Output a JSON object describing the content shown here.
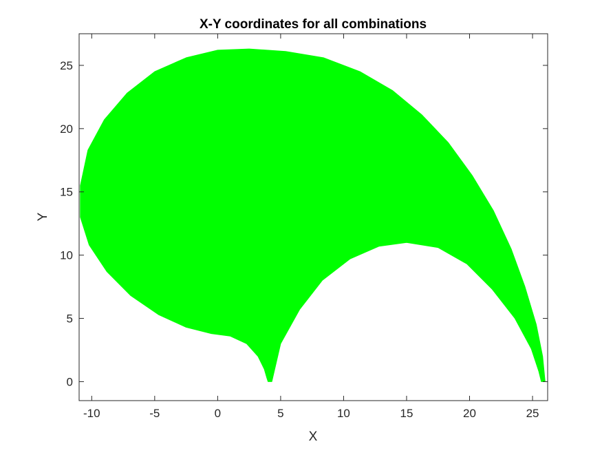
{
  "chart_data": {
    "type": "area",
    "title": "X-Y coordinates for all combinations",
    "xlabel": "X",
    "ylabel": "Y",
    "xlim": [
      -11,
      26.2
    ],
    "ylim": [
      -1.5,
      27.5
    ],
    "x_ticks": [
      -10,
      -5,
      0,
      5,
      10,
      15,
      20,
      25
    ],
    "y_ticks": [
      0,
      5,
      10,
      15,
      20,
      25
    ],
    "x_tick_labels": [
      "-10",
      "-5",
      "0",
      "5",
      "10",
      "15",
      "20",
      "25"
    ],
    "y_tick_labels": [
      "0",
      "5",
      "10",
      "15",
      "20",
      "25"
    ],
    "grid": false,
    "legend": "none",
    "fill_color": "#00ff00",
    "series": [
      {
        "region_outline": [
          [
            26.0,
            0.0
          ],
          [
            25.8,
            2.0
          ],
          [
            25.3,
            4.5
          ],
          [
            24.4,
            7.5
          ],
          [
            23.3,
            10.5
          ],
          [
            21.9,
            13.5
          ],
          [
            20.2,
            16.3
          ],
          [
            18.3,
            18.9
          ],
          [
            16.2,
            21.1
          ],
          [
            13.9,
            23.0
          ],
          [
            11.3,
            24.5
          ],
          [
            8.4,
            25.6
          ],
          [
            5.4,
            26.1
          ],
          [
            2.5,
            26.3
          ],
          [
            0.0,
            26.2
          ],
          [
            -2.5,
            25.6
          ],
          [
            -5.0,
            24.5
          ],
          [
            -7.2,
            22.8
          ],
          [
            -9.0,
            20.7
          ],
          [
            -10.3,
            18.3
          ],
          [
            -10.9,
            15.5
          ],
          [
            -10.9,
            13.0
          ],
          [
            -10.2,
            10.8
          ],
          [
            -8.8,
            8.7
          ],
          [
            -6.9,
            6.8
          ],
          [
            -4.7,
            5.3
          ],
          [
            -2.5,
            4.3
          ],
          [
            -0.5,
            3.8
          ],
          [
            1.0,
            3.6
          ],
          [
            2.3,
            3.0
          ],
          [
            3.2,
            2.0
          ],
          [
            3.7,
            1.0
          ],
          [
            3.9,
            0.3
          ],
          [
            4.0,
            0.0
          ],
          [
            4.3,
            0.0
          ],
          [
            5.0,
            3.0
          ],
          [
            6.5,
            5.7
          ],
          [
            8.3,
            8.0
          ],
          [
            10.5,
            9.7
          ],
          [
            12.8,
            10.7
          ],
          [
            15.0,
            11.0
          ],
          [
            17.5,
            10.6
          ],
          [
            19.8,
            9.3
          ],
          [
            21.8,
            7.3
          ],
          [
            23.6,
            5.0
          ],
          [
            24.9,
            2.6
          ],
          [
            25.5,
            0.8
          ],
          [
            25.7,
            0.0
          ]
        ]
      }
    ]
  }
}
